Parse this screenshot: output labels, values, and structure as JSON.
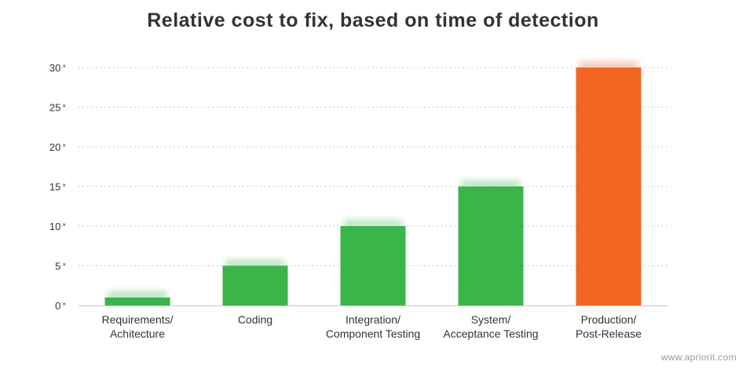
{
  "chart_data": {
    "type": "bar",
    "title": "Relative cost to fix, based on time of detection",
    "categories": [
      [
        "Requirements/",
        "Achitecture"
      ],
      [
        "Coding"
      ],
      [
        "Integration/",
        "Component Testing"
      ],
      [
        "System/",
        "Acceptance Testing"
      ],
      [
        "Production/",
        "Post-Release"
      ]
    ],
    "values": [
      1,
      5,
      10,
      15,
      30
    ],
    "tick_values": [
      0,
      5,
      10,
      15,
      20,
      25,
      30
    ],
    "tick_suffix": "×",
    "ylim": [
      0,
      30
    ],
    "grid": true,
    "colors": {
      "bar": "#3ab54a",
      "highlight": "#f26522",
      "grid": "#b8b8b8",
      "axis": "#c8c8c8"
    },
    "highlight_index": 4
  },
  "watermark": "www.apriorit.com"
}
